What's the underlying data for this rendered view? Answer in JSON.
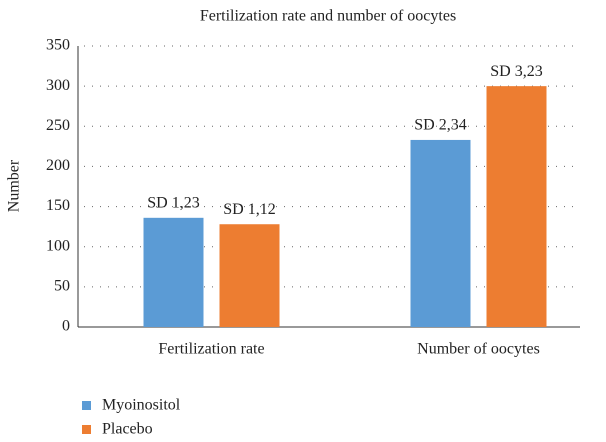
{
  "chart_data": {
    "type": "bar",
    "title": "Fertilization rate and number of oocytes",
    "y_label": "Number",
    "categories": [
      "Fertilization rate",
      "Number of oocytes"
    ],
    "series": [
      {
        "name": "Myoinositol",
        "color": "#5b9bd5",
        "values": [
          136,
          233
        ],
        "annotations": [
          "SD 1,23",
          "SD 2,34"
        ]
      },
      {
        "name": "Placebo",
        "color": "#ed7d31",
        "values": [
          128,
          300
        ],
        "annotations": [
          "SD 1,12",
          "SD 3,23"
        ]
      }
    ],
    "ylim": [
      0,
      350
    ],
    "yticks": [
      0,
      50,
      100,
      150,
      200,
      250,
      300,
      350
    ],
    "grid": true,
    "legend": "bottom-left"
  }
}
